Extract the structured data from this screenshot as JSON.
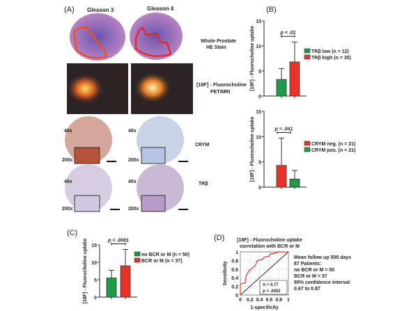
{
  "panel_a": {
    "label": "(A)",
    "col1": "Gleason 3",
    "col2": "Gleason 4",
    "row_he": [
      "Whole Prostate",
      "HE Stain"
    ],
    "row_pet": [
      "[18F] - Fluorocholine",
      "PET/MRI"
    ],
    "row_crym": "CRYM",
    "row_trb": "TRβ",
    "mag_low": "40x",
    "mag_high": "200x"
  },
  "chart_data": [
    {
      "id": "B1",
      "panel": "(B)",
      "type": "bar",
      "ylabel": "[18F] - Fluorocholine uptake",
      "ylim": [
        0,
        15
      ],
      "yticks": [
        0,
        5,
        10,
        15
      ],
      "p_label": "p < .01",
      "series": [
        {
          "name": "TRβ low (n = 12)",
          "value": 3.3,
          "error": 5.5,
          "color": "#1f9a48"
        },
        {
          "name": "TRβ high (n = 30)",
          "value": 6.8,
          "error": 10.8,
          "color": "#e8332d"
        }
      ]
    },
    {
      "id": "B2",
      "type": "bar",
      "ylabel": "[18F] - Fluorocholine uptake",
      "ylim": [
        0,
        15
      ],
      "yticks": [
        0,
        5,
        10,
        15
      ],
      "p_label": "p = .041",
      "series": [
        {
          "name": "CRYM neg. (n = 21)",
          "value": 4.3,
          "error": 9.7,
          "color": "#e8332d"
        },
        {
          "name": "CRYM pos. (n = 21)",
          "value": 1.6,
          "error": 3.3,
          "color": "#1f9a48"
        }
      ]
    },
    {
      "id": "C",
      "panel": "(C)",
      "type": "bar",
      "ylabel": "[18F] - Fluorocholine uptake",
      "ylim": [
        0,
        15
      ],
      "yticks": [
        0,
        5,
        10,
        15
      ],
      "p_label": "p < .0001",
      "series": [
        {
          "name": "no BCR or M (n = 50)",
          "value": 5.5,
          "error": 7.7,
          "color": "#1f9a48"
        },
        {
          "name": "BCR or M (n = 37)",
          "value": 9.0,
          "error": 13.7,
          "color": "#e8332d"
        }
      ]
    },
    {
      "id": "D",
      "panel": "(D)",
      "type": "line",
      "title": [
        "[18F] - Fluorocholine uptake",
        "correlation with BCR or M"
      ],
      "xlabel": "1-specificity",
      "ylabel": "Sensitivity",
      "xlim": [
        0,
        1
      ],
      "ylim": [
        0,
        1
      ],
      "xticks": [
        0,
        0.2,
        0.4,
        0.6,
        0.8,
        1
      ],
      "yticks": [
        0,
        0.2,
        0.4,
        0.6,
        0.8,
        1
      ],
      "grid": true,
      "annotation": [
        "A = 0.77",
        "p < .0001"
      ],
      "roc": [
        [
          0,
          0
        ],
        [
          0,
          0.25
        ],
        [
          0.05,
          0.27
        ],
        [
          0.1,
          0.28
        ],
        [
          0.12,
          0.45
        ],
        [
          0.15,
          0.5
        ],
        [
          0.17,
          0.55
        ],
        [
          0.22,
          0.6
        ],
        [
          0.28,
          0.65
        ],
        [
          0.32,
          0.7
        ],
        [
          0.35,
          0.8
        ],
        [
          0.45,
          0.82
        ],
        [
          0.5,
          0.88
        ],
        [
          0.6,
          0.9
        ],
        [
          0.62,
          0.95
        ],
        [
          0.75,
          0.98
        ],
        [
          0.8,
          1
        ],
        [
          1,
          1
        ]
      ],
      "roc_color": "#e8332d",
      "notes": [
        "Mean follow up 508 days",
        "87 Patients:",
        "no BCR or M = 50",
        "BCR or M = 37",
        "95% confidence interval:",
        "0.67 to 0.87"
      ]
    }
  ]
}
